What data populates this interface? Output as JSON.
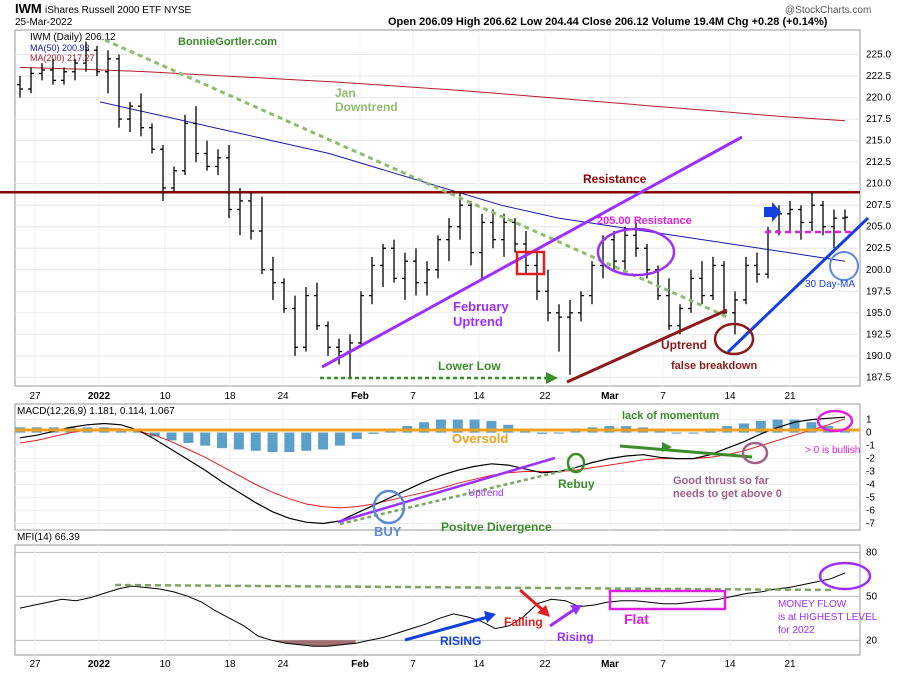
{
  "header": {
    "symbol": "IWM",
    "name": "iShares Russell 2000 ETF  NYSE",
    "date": "25-Mar-2022",
    "ohlc": "Open 206.09  High 206.62  Low 204.44  Close 206.12  Volume 19.4M  Chg +0.28 (+0.14%)",
    "copyright": "@StockCharts.com"
  },
  "price_panel": {
    "label": "IWM (Daily) 206.12",
    "ma50": "MA(50) 200.93",
    "ma200": "MA(200) 217.27",
    "author": "BonnieGortler.com"
  },
  "macd_panel": {
    "label": "MACD(12,26,9) 1.181, 0.114, 1.067"
  },
  "mfi_panel": {
    "label": "MFI(14) 66.39"
  },
  "annotations": {
    "jan": "Jan",
    "downtrend": "Downtrend",
    "resistance": "Resistance",
    "res205": "205.00 Resistance",
    "feb": "February",
    "uptrend": "Uptrend",
    "lower_low": "Lower Low",
    "uptrend2": "Uptrend",
    "false_bd": "false breakdown",
    "ma30": "30 Day-MA",
    "lack": "lack of momentum",
    "oversold": "Oversold",
    "gt0": "> 0 is bullish",
    "rebuy": "Rebuy",
    "good1": "Good thrust so far",
    "good2": "needs to get above 0",
    "buy": "BUY",
    "uptrend_macd": "Uptrend",
    "posdiv": "Positve Divergence",
    "rising": "RISING",
    "falling": "Falling",
    "rising2": "Rising",
    "flat": "Flat",
    "mf1": "MONEY FLOW",
    "mf2": "is at HIGHEST LEVEL",
    "mf3": "for 2022"
  },
  "colors": {
    "ma50": "#1a1aa8",
    "ma200": "#b0202c",
    "resistance": "#8b0000",
    "downtrend": "#8fbc6f",
    "purple": "#9b30ff",
    "magenta": "#e020e0",
    "green": "#3c8c2c",
    "blue": "#1540e0",
    "hist": "#5aa0c8",
    "orange": "#f0a020",
    "brown": "#8b1a1a"
  },
  "chart_data": {
    "type": "line",
    "x_ticks": [
      "27",
      "2022",
      "10",
      "18",
      "24",
      "Feb",
      "7",
      "14",
      "22",
      "Mar",
      "7",
      "14",
      "21"
    ],
    "price": {
      "ylim": [
        186.5,
        227.5
      ],
      "ticks": [
        187.5,
        190.0,
        192.5,
        195.0,
        197.5,
        200.0,
        202.5,
        205.0,
        207.5,
        210.0,
        212.5,
        215.0,
        217.5,
        220.0,
        222.5,
        225.0
      ],
      "bars": [
        [
          221.5,
          222.5,
          220.0,
          221.0
        ],
        [
          221.0,
          223.5,
          220.5,
          222.8
        ],
        [
          222.8,
          224.0,
          222.0,
          223.2
        ],
        [
          223.2,
          224.5,
          221.5,
          222.0
        ],
        [
          222.0,
          223.5,
          221.5,
          223.0
        ],
        [
          223.0,
          224.5,
          222.0,
          224.0
        ],
        [
          224.0,
          226.5,
          223.0,
          225.5
        ],
        [
          225.5,
          226.0,
          222.5,
          223.0
        ],
        [
          223.0,
          225.5,
          220.5,
          224.5
        ],
        [
          224.5,
          225.0,
          216.5,
          217.5
        ],
        [
          217.5,
          219.5,
          216.0,
          219.0
        ],
        [
          219.0,
          220.5,
          215.5,
          216.5
        ],
        [
          216.5,
          217.0,
          213.5,
          214.0
        ],
        [
          214.0,
          214.5,
          208.0,
          209.5
        ],
        [
          209.5,
          212.0,
          209.0,
          211.5
        ],
        [
          211.5,
          218.0,
          211.0,
          217.0
        ],
        [
          217.0,
          219.0,
          212.5,
          213.5
        ],
        [
          213.5,
          215.0,
          211.5,
          212.0
        ],
        [
          212.0,
          214.0,
          211.0,
          213.0
        ],
        [
          213.0,
          214.5,
          206.0,
          207.0
        ],
        [
          207.0,
          209.5,
          204.0,
          208.0
        ],
        [
          208.0,
          209.0,
          203.5,
          204.5
        ],
        [
          204.5,
          208.5,
          199.5,
          200.0
        ],
        [
          200.0,
          201.5,
          196.5,
          198.5
        ],
        [
          198.5,
          199.0,
          195.0,
          195.5
        ],
        [
          195.5,
          197.0,
          190.0,
          191.0
        ],
        [
          191.0,
          198.0,
          190.5,
          197.0
        ],
        [
          197.0,
          198.5,
          193.0,
          193.5
        ],
        [
          193.5,
          194.0,
          190.0,
          191.0
        ],
        [
          191.0,
          192.0,
          189.0,
          190.5
        ],
        [
          190.5,
          192.5,
          187.5,
          191.5
        ],
        [
          191.5,
          197.5,
          191.0,
          197.0
        ],
        [
          197.0,
          201.5,
          196.0,
          200.5
        ],
        [
          200.5,
          203.0,
          198.0,
          202.5
        ],
        [
          202.5,
          203.5,
          198.5,
          199.0
        ],
        [
          199.0,
          202.0,
          196.5,
          201.0
        ],
        [
          201.0,
          202.5,
          197.0,
          198.5
        ],
        [
          198.5,
          201.0,
          197.0,
          200.0
        ],
        [
          200.0,
          204.0,
          199.0,
          203.5
        ],
        [
          203.5,
          206.0,
          201.0,
          205.0
        ],
        [
          205.0,
          209.0,
          203.5,
          207.5
        ],
        [
          207.5,
          208.0,
          200.5,
          202.0
        ],
        [
          202.0,
          206.5,
          199.0,
          205.5
        ],
        [
          205.5,
          207.0,
          202.5,
          203.5
        ],
        [
          203.5,
          206.5,
          201.5,
          205.5
        ],
        [
          205.5,
          206.0,
          202.0,
          203.0
        ],
        [
          203.0,
          204.5,
          199.5,
          200.5
        ],
        [
          200.5,
          202.0,
          196.5,
          197.5
        ],
        [
          197.5,
          200.0,
          194.0,
          195.0
        ],
        [
          195.0,
          196.0,
          190.5,
          194.5
        ],
        [
          194.5,
          196.5,
          187.8,
          195.0
        ],
        [
          195.0,
          197.5,
          194.0,
          197.0
        ],
        [
          197.0,
          201.0,
          196.0,
          200.5
        ],
        [
          200.5,
          204.0,
          199.0,
          203.5
        ],
        [
          203.5,
          204.5,
          200.0,
          201.0
        ],
        [
          201.0,
          205.0,
          200.0,
          204.0
        ],
        [
          204.0,
          205.5,
          201.5,
          202.5
        ],
        [
          202.5,
          203.0,
          199.0,
          200.0
        ],
        [
          200.0,
          200.5,
          196.5,
          197.0
        ],
        [
          197.0,
          199.0,
          193.0,
          193.5
        ],
        [
          193.5,
          196.0,
          192.5,
          195.5
        ],
        [
          195.5,
          200.0,
          195.0,
          199.0
        ],
        [
          199.0,
          201.0,
          196.0,
          197.0
        ],
        [
          197.0,
          201.5,
          196.5,
          200.5
        ],
        [
          200.5,
          201.0,
          194.5,
          195.0
        ],
        [
          195.0,
          197.5,
          192.5,
          196.5
        ],
        [
          196.5,
          201.5,
          196.0,
          200.5
        ],
        [
          200.5,
          202.0,
          198.5,
          199.5
        ],
        [
          199.5,
          205.0,
          199.0,
          204.5
        ],
        [
          204.5,
          207.5,
          204.0,
          206.5
        ],
        [
          206.5,
          208.0,
          204.5,
          207.0
        ],
        [
          207.0,
          207.5,
          203.5,
          205.5
        ],
        [
          205.5,
          209.0,
          204.5,
          207.5
        ],
        [
          207.5,
          208.0,
          204.0,
          205.0
        ],
        [
          205.0,
          207.0,
          202.5,
          206.0
        ],
        [
          206.0,
          207.0,
          204.5,
          206.1
        ]
      ],
      "ma50": [
        219.5,
        218.0,
        216.5,
        215.0,
        213.5,
        211.5,
        209.5,
        207.5,
        206.0,
        205.0,
        204.0,
        203.0,
        202.0,
        201.0
      ],
      "ma200": [
        223.5,
        223.3,
        223.0,
        222.6,
        222.2,
        221.8,
        221.3,
        220.8,
        220.2,
        219.6,
        219.0,
        218.4,
        217.8,
        217.3
      ],
      "resistance": 209.0,
      "resistance_205": 205.0
    },
    "macd": {
      "ylim": [
        -7.5,
        2.2
      ],
      "ticks": [
        1,
        0,
        -1,
        -2,
        -3,
        -4,
        -5,
        -6,
        -7
      ],
      "macd": [
        -0.4,
        -0.2,
        0.1,
        0.4,
        0.6,
        0.7,
        0.6,
        0.2,
        -0.5,
        -1.3,
        -2.1,
        -2.9,
        -3.8,
        -4.6,
        -5.4,
        -6.1,
        -6.6,
        -6.9,
        -7.0,
        -6.8,
        -6.2,
        -5.6,
        -5.0,
        -4.4,
        -3.8,
        -3.3,
        -2.9,
        -2.6,
        -2.4,
        -2.5,
        -2.8,
        -3.1,
        -3.0,
        -2.7,
        -2.3,
        -2.0,
        -1.8,
        -1.7,
        -1.9,
        -2.0,
        -2.0,
        -1.7,
        -1.2,
        -0.7,
        -0.1,
        0.4,
        0.8,
        1.0,
        1.1,
        1.18
      ],
      "signal": [
        -0.8,
        -0.6,
        -0.3,
        0.0,
        0.2,
        0.3,
        0.3,
        0.1,
        -0.2,
        -0.7,
        -1.3,
        -1.9,
        -2.6,
        -3.3,
        -4.0,
        -4.6,
        -5.1,
        -5.5,
        -5.7,
        -5.8,
        -5.7,
        -5.5,
        -5.2,
        -4.9,
        -4.6,
        -4.3,
        -3.9,
        -3.6,
        -3.3,
        -3.1,
        -3.0,
        -3.0,
        -3.0,
        -2.9,
        -2.7,
        -2.5,
        -2.3,
        -2.1,
        -2.0,
        -2.0,
        -2.0,
        -1.9,
        -1.7,
        -1.4,
        -1.0,
        -0.6,
        -0.2,
        0.2,
        0.6,
        1.07
      ],
      "histogram": [
        0.4,
        0.4,
        0.4,
        0.4,
        0.4,
        0.4,
        0.3,
        0.1,
        -0.3,
        -0.6,
        -0.8,
        -1.0,
        -1.2,
        -1.3,
        -1.4,
        -1.5,
        -1.5,
        -1.4,
        -1.3,
        -1.0,
        -0.5,
        -0.1,
        0.2,
        0.5,
        0.8,
        1.0,
        1.0,
        1.0,
        0.9,
        0.6,
        0.2,
        -0.1,
        0.0,
        0.2,
        0.4,
        0.5,
        0.5,
        0.4,
        0.1,
        0.0,
        0.0,
        0.2,
        0.5,
        0.7,
        0.9,
        1.0,
        1.0,
        0.8,
        0.5,
        0.11
      ]
    },
    "mfi": {
      "ylim": [
        10,
        85
      ],
      "ticks": [
        80,
        50,
        20
      ],
      "values": [
        42,
        44,
        46,
        48,
        47,
        49,
        52,
        55,
        57,
        56,
        55,
        53,
        50,
        46,
        40,
        35,
        30,
        23,
        20,
        18,
        17,
        16,
        16,
        17,
        18,
        20,
        22,
        25,
        28,
        31,
        35,
        38,
        36,
        33,
        28,
        30,
        36,
        45,
        48,
        47,
        43,
        44,
        46,
        47,
        47,
        46,
        45,
        45,
        46,
        47,
        48,
        50,
        52,
        53,
        55,
        56,
        58,
        60,
        62,
        66
      ]
    }
  }
}
